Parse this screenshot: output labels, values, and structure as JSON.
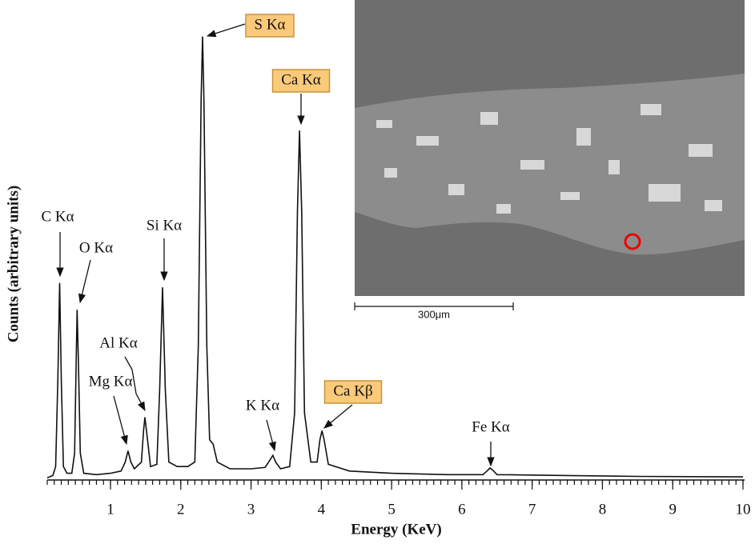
{
  "chart_data": {
    "type": "line",
    "xlabel": "Energy (KeV)",
    "ylabel": "Counts (arbitrary units)",
    "xlim": [
      0.1,
      10
    ],
    "ylim": [
      0,
      100
    ],
    "xticks": [
      1,
      2,
      3,
      4,
      5,
      6,
      7,
      8,
      9,
      10
    ],
    "xminor_step": 0.1,
    "series": [
      {
        "color": "#111111",
        "x": [
          0.1,
          0.18,
          0.22,
          0.25,
          0.277,
          0.3,
          0.33,
          0.38,
          0.45,
          0.49,
          0.51,
          0.525,
          0.545,
          0.57,
          0.62,
          0.8,
          1.0,
          1.15,
          1.21,
          1.25,
          1.29,
          1.34,
          1.44,
          1.47,
          1.49,
          1.52,
          1.57,
          1.66,
          1.7,
          1.74,
          1.78,
          1.83,
          1.95,
          2.1,
          2.2,
          2.25,
          2.29,
          2.31,
          2.33,
          2.37,
          2.41,
          2.46,
          2.52,
          2.7,
          3.0,
          3.2,
          3.27,
          3.31,
          3.35,
          3.42,
          3.55,
          3.62,
          3.66,
          3.69,
          3.72,
          3.76,
          3.85,
          3.94,
          3.98,
          4.01,
          4.04,
          4.1,
          4.4,
          5.0,
          5.8,
          6.3,
          6.37,
          6.4,
          6.44,
          6.5,
          7.5,
          8.5,
          10
        ],
        "values": [
          0.5,
          1,
          3,
          22,
          44,
          22,
          3,
          1.5,
          1.5,
          6,
          25,
          38,
          25,
          6,
          1.5,
          1.2,
          1.5,
          2,
          4,
          6.5,
          4,
          2.5,
          4,
          11,
          14,
          10,
          3,
          3.5,
          20,
          43,
          20,
          4,
          3,
          3,
          4,
          30,
          85,
          99,
          85,
          30,
          9,
          8,
          4,
          2.5,
          2.5,
          2.8,
          4.5,
          5.5,
          4,
          2.5,
          3,
          15,
          60,
          78,
          60,
          15,
          4,
          4,
          9,
          11,
          9,
          3.5,
          2,
          1.5,
          1.2,
          1.2,
          2.2,
          2.7,
          2.2,
          1.2,
          1,
          0.8,
          0.7
        ]
      }
    ],
    "annotations": [
      {
        "text": "C Kα",
        "highlight": false
      },
      {
        "text": "O Kα",
        "highlight": false
      },
      {
        "text": "Mg Kα",
        "highlight": false
      },
      {
        "text": "Al Kα",
        "highlight": false
      },
      {
        "text": "Si Kα",
        "highlight": false
      },
      {
        "text": "S Kα",
        "highlight": true
      },
      {
        "text": "K Kα",
        "highlight": false
      },
      {
        "text": "Ca Kα",
        "highlight": true
      },
      {
        "text": "Ca Kβ",
        "highlight": true
      },
      {
        "text": "Fe Kα",
        "highlight": false
      }
    ]
  },
  "inset": {
    "scale_bar": "300μm"
  }
}
